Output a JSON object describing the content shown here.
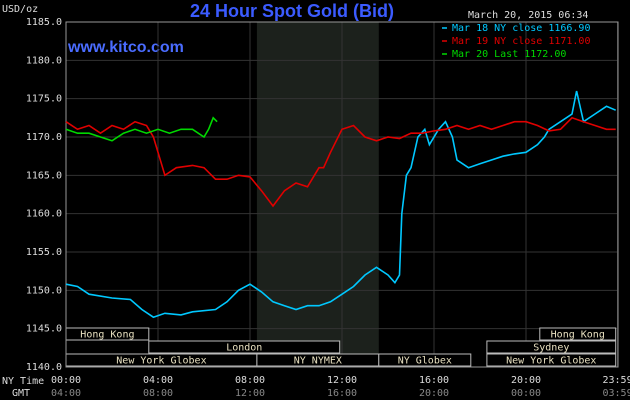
{
  "chart_data": {
    "type": "line",
    "title": "24 Hour Spot Gold (Bid)",
    "y_label": "USD/oz",
    "site": "www.kitco.com",
    "timestamp": "March 20, 2015 06:34",
    "x_label": "NY Time",
    "x2_label": "GMT",
    "xlim": [
      0,
      24
    ],
    "xticks": [
      {
        "value": 0,
        "label": "00:00"
      },
      {
        "value": 4,
        "label": "04:00"
      },
      {
        "value": 8,
        "label": "08:00"
      },
      {
        "value": 12,
        "label": "12:00"
      },
      {
        "value": 16,
        "label": "16:00"
      },
      {
        "value": 20,
        "label": "20:00"
      },
      {
        "value": 23.98,
        "label": "23:59"
      }
    ],
    "gmt_ticks": [
      "04:00",
      "08:00",
      "12:00",
      "16:00",
      "20:00",
      "00:00",
      "03:59"
    ],
    "ylim": [
      1140,
      1185
    ],
    "yticks": [
      {
        "value": 1140,
        "label": "1140.0"
      },
      {
        "value": 1145,
        "label": "1145.0"
      },
      {
        "value": 1150,
        "label": "1150.0"
      },
      {
        "value": 1155,
        "label": "1155.0"
      },
      {
        "value": 1160,
        "label": "1160.0"
      },
      {
        "value": 1165,
        "label": "1165.0"
      },
      {
        "value": 1170,
        "label": "1170.0"
      },
      {
        "value": 1175,
        "label": "1175.0"
      },
      {
        "value": 1180,
        "label": "1180.0"
      },
      {
        "value": 1185,
        "label": "1185.0"
      }
    ],
    "grid": true,
    "series": [
      {
        "name": "Mar 18 NY close 1166.90",
        "color": "#00c8ff",
        "x": [
          0,
          0.5,
          1,
          2,
          2.8,
          3.3,
          3.8,
          4.3,
          5,
          5.5,
          6.5,
          7,
          7.5,
          8,
          8.5,
          9,
          9.5,
          10,
          10.5,
          11,
          11.5,
          12,
          12.5,
          13,
          13.5,
          14,
          14.3,
          14.5,
          14.6,
          14.8,
          15,
          15.3,
          15.6,
          15.8,
          16.2,
          16.5,
          16.8,
          17,
          17.5,
          18,
          18.5,
          19,
          19.5,
          20,
          20.5,
          20.8,
          21,
          21.5,
          22,
          22.2,
          22.5,
          23,
          23.5,
          23.9
        ],
        "values": [
          1150.8,
          1150.5,
          1149.5,
          1149,
          1148.8,
          1147.5,
          1146.5,
          1147,
          1146.8,
          1147.2,
          1147.5,
          1148.5,
          1150,
          1150.8,
          1149.8,
          1148.5,
          1148,
          1147.5,
          1148,
          1148,
          1148.5,
          1149.5,
          1150.5,
          1152,
          1153,
          1152,
          1151,
          1152,
          1160,
          1165,
          1166,
          1170,
          1171,
          1169,
          1171,
          1172,
          1170,
          1167,
          1166,
          1166.5,
          1167,
          1167.5,
          1167.8,
          1168,
          1169,
          1170,
          1171,
          1172,
          1173,
          1176,
          1172,
          1173,
          1174,
          1173.5
        ]
      },
      {
        "name": "Mar 19 NY close 1171.00",
        "color": "#e00000",
        "x": [
          0,
          0.5,
          1,
          1.5,
          2,
          2.5,
          3,
          3.5,
          3.8,
          4,
          4.3,
          4.8,
          5.5,
          6,
          6.5,
          7,
          7.5,
          8,
          8.5,
          9,
          9.5,
          10,
          10.5,
          11,
          11.2,
          11.5,
          12,
          12.5,
          13,
          13.5,
          14,
          14.5,
          15,
          15.5,
          16,
          16.5,
          17,
          17.5,
          18,
          18.5,
          19,
          19.5,
          20,
          20.5,
          21,
          21.5,
          22,
          22.5,
          23,
          23.5,
          23.9
        ],
        "values": [
          1172,
          1171,
          1171.5,
          1170.5,
          1171.5,
          1171,
          1172,
          1171.5,
          1170,
          1168,
          1165,
          1166,
          1166.3,
          1166,
          1164.5,
          1164.5,
          1165,
          1164.8,
          1163,
          1161,
          1163,
          1164,
          1163.5,
          1166,
          1166,
          1168,
          1171,
          1171.5,
          1170,
          1169.5,
          1170,
          1169.8,
          1170.5,
          1170.5,
          1170.8,
          1171,
          1171.5,
          1171,
          1171.5,
          1171,
          1171.5,
          1172,
          1172,
          1171.5,
          1170.8,
          1171,
          1172.5,
          1172,
          1171.5,
          1171,
          1171
        ]
      },
      {
        "name": "Mar 20 Last 1172.00",
        "color": "#00d800",
        "x": [
          0,
          0.5,
          1,
          1.5,
          2,
          2.5,
          3,
          3.5,
          4,
          4.5,
          5,
          5.5,
          6,
          6.2,
          6.4,
          6.57
        ],
        "values": [
          1171,
          1170.5,
          1170.5,
          1170,
          1169.5,
          1170.5,
          1171,
          1170.5,
          1171,
          1170.5,
          1171,
          1171,
          1170,
          1171,
          1172.5,
          1172
        ]
      }
    ],
    "session_rows": [
      [
        {
          "label": "Hong Kong",
          "start": 0,
          "end": 3.6
        },
        {
          "label": "Hong Kong",
          "start": 20.6,
          "end": 23.9
        }
      ],
      [
        {
          "label": "London",
          "start": 3.6,
          "end": 11.9
        },
        {
          "label": "Sydney",
          "start": 18.3,
          "end": 23.9
        }
      ],
      [
        {
          "label": "New York Globex",
          "start": 0,
          "end": 8.3
        },
        {
          "label": "NY NYMEX",
          "start": 8.3,
          "end": 13.6,
          "shade": true
        },
        {
          "label": "NY Globex",
          "start": 13.6,
          "end": 17.6
        },
        {
          "label": "New York Globex",
          "start": 18.3,
          "end": 23.9
        }
      ]
    ]
  }
}
